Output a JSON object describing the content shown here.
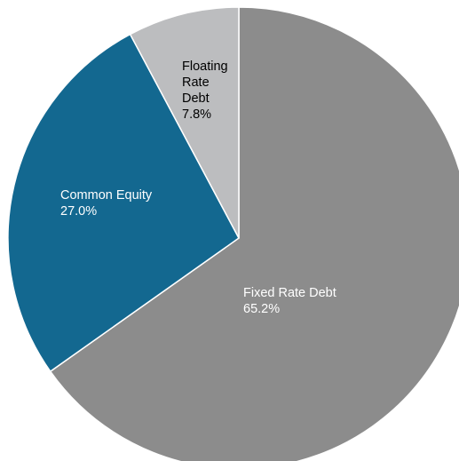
{
  "chart_data": {
    "type": "pie",
    "title": "",
    "start_angle_deg": 0,
    "direction": "clockwise",
    "slices": [
      {
        "name": "Fixed Rate Debt",
        "value": 65.2,
        "value_label": "65.2%",
        "label_lines": [
          "Fixed Rate Debt"
        ],
        "color": "#8c8c8c",
        "label_color": "#ffffff"
      },
      {
        "name": "Common Equity",
        "value": 27.0,
        "value_label": "27.0%",
        "label_lines": [
          "Common Equity"
        ],
        "color": "#136890",
        "label_color": "#ffffff"
      },
      {
        "name": "Floating Rate Debt",
        "value": 7.8,
        "value_label": "7.8%",
        "label_lines": [
          "Floating",
          "Rate",
          "Debt"
        ],
        "color": "#bcbdbf",
        "label_color": "#000000"
      }
    ]
  }
}
